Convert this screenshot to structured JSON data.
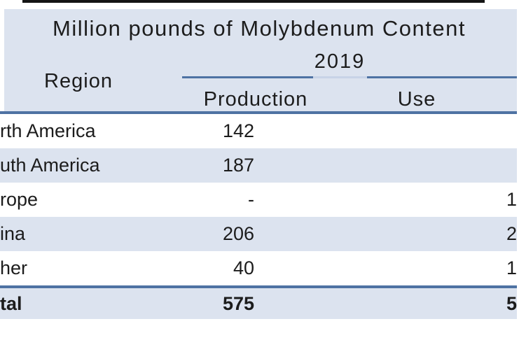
{
  "title": "Million pounds of Molybdenum Content",
  "table": {
    "year_header": "2019",
    "region_header": "Region",
    "col_production": "Production",
    "col_use": "Use",
    "rows": [
      {
        "region": "rth America",
        "production": "142",
        "use": ""
      },
      {
        "region": "uth America",
        "production": "187",
        "use": ""
      },
      {
        "region": "rope",
        "production": "-",
        "use": "1"
      },
      {
        "region": "ina",
        "production": "206",
        "use": "2"
      },
      {
        "region": "her",
        "production": "40",
        "use": "1"
      }
    ],
    "total": {
      "region": "tal",
      "production": "575",
      "use": "5"
    }
  },
  "colors": {
    "stripe_blue": "#dce3ef",
    "rule_blue": "#4e72a3",
    "rule_light_gap": "#c8d3e7",
    "top_bar_black": "#151515",
    "text": "#1c1c1c"
  },
  "chart_data": {
    "type": "table",
    "title": "Million pounds of Molybdenum Content",
    "year": "2019",
    "columns": [
      "Region",
      "Production",
      "Use"
    ],
    "rows": [
      [
        "rth America",
        "142",
        ""
      ],
      [
        "uth America",
        "187",
        ""
      ],
      [
        "rope",
        "-",
        "1"
      ],
      [
        "ina",
        "206",
        "2"
      ],
      [
        "her",
        "40",
        "1"
      ]
    ],
    "total_row": [
      "tal",
      "575",
      "5"
    ]
  }
}
